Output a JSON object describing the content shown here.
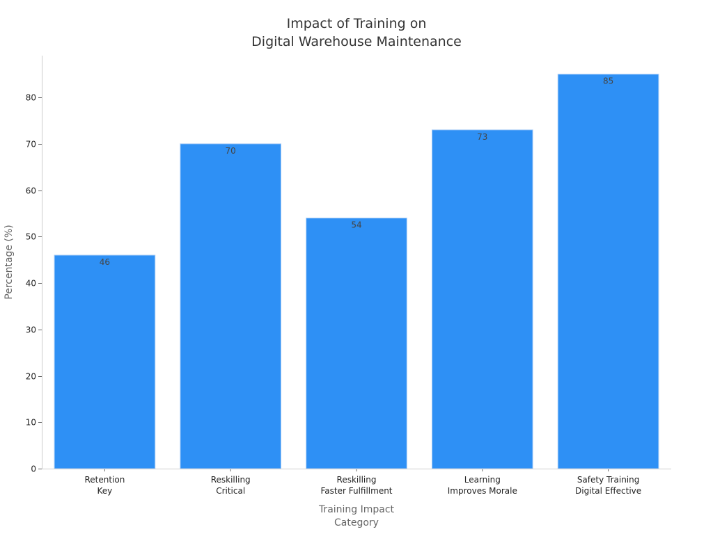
{
  "chart_data": {
    "type": "bar",
    "title": [
      "Impact of Training on",
      "Digital Warehouse Maintenance"
    ],
    "xlabel": [
      "Training Impact",
      "Category"
    ],
    "ylabel": "Percentage (%)",
    "categories": [
      [
        "Retention",
        "Key"
      ],
      [
        "Reskilling",
        "Critical"
      ],
      [
        "Reskilling",
        "Faster Fulfillment"
      ],
      [
        "Learning",
        "Improves Morale"
      ],
      [
        "Safety Training",
        "Digital Effective"
      ]
    ],
    "values": [
      46,
      70,
      54,
      73,
      85
    ],
    "ylim": [
      0,
      89
    ],
    "yticks": [
      0,
      10,
      20,
      30,
      40,
      50,
      60,
      70,
      80
    ],
    "bar_color": "#2e90f5",
    "grid": false,
    "legend": "none"
  }
}
